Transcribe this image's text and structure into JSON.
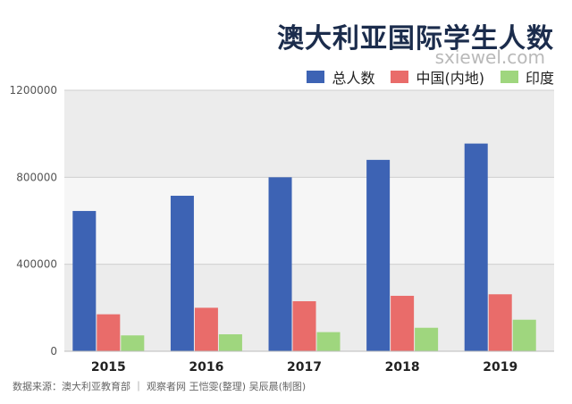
{
  "title": "澳大利亚国际学生人数",
  "watermark": "sxiewel.com",
  "source": "数据来源：澳大利亚教育部 ｜ 观察者网 王恺雯(整理) 吴辰晨(制图)",
  "chart_data": {
    "type": "bar",
    "categories": [
      "2015",
      "2016",
      "2017",
      "2018",
      "2019"
    ],
    "series": [
      {
        "name": "总人数",
        "color": "#3d63b4",
        "values": [
          645000,
          715000,
          800000,
          880000,
          955000
        ]
      },
      {
        "name": "中国(内地)",
        "color": "#e96c6a",
        "values": [
          170000,
          200000,
          230000,
          255000,
          262000
        ]
      },
      {
        "name": "印度",
        "color": "#9fd67e",
        "values": [
          73000,
          78000,
          88000,
          108000,
          145000
        ]
      }
    ],
    "ylim": [
      0,
      1200000
    ],
    "yticks": [
      0,
      400000,
      800000,
      1200000
    ],
    "ytick_labels": [
      "0",
      "400000",
      "800000",
      "1200000"
    ],
    "grid": true,
    "legend_position": "top-right"
  }
}
